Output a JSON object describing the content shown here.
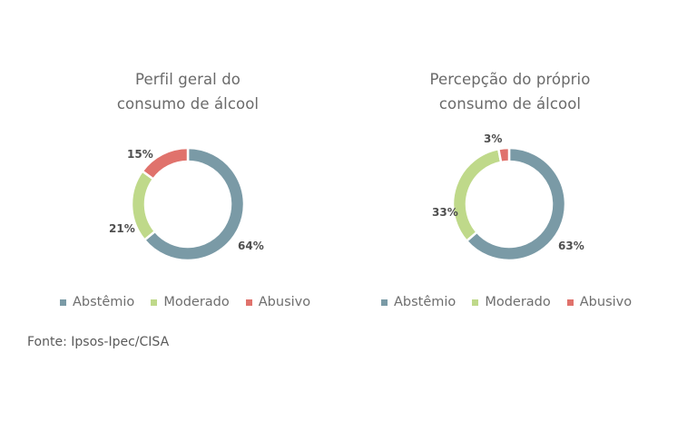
{
  "chart_data": [
    {
      "type": "pie",
      "style": "donut",
      "title": "Perfil geral do consumo de álcool",
      "categories": [
        "Abstêmio",
        "Moderado",
        "Abusivo"
      ],
      "values": [
        64,
        21,
        15
      ],
      "unit": "%",
      "colors": [
        "#7a9aa6",
        "#bfd98a",
        "#e0726c"
      ],
      "legend_position": "bottom"
    },
    {
      "type": "pie",
      "style": "donut",
      "title": "Percepção do próprio consumo de álcool",
      "categories": [
        "Abstêmio",
        "Moderado",
        "Abusivo"
      ],
      "values": [
        63,
        33,
        3
      ],
      "unit": "%",
      "colors": [
        "#7a9aa6",
        "#bfd98a",
        "#e0726c"
      ],
      "legend_position": "bottom"
    }
  ],
  "charts": [
    {
      "title_line1": "Perfil geral do",
      "title_line2": "consumo de álcool",
      "labels": [
        "64%",
        "21%",
        "15%"
      ],
      "legend": [
        "Abstêmio",
        "Moderado",
        "Abusivo"
      ]
    },
    {
      "title_line1": "Percepção do próprio",
      "title_line2": "consumo de álcool",
      "labels": [
        "63%",
        "33%",
        "3%"
      ],
      "legend": [
        "Abstêmio",
        "Moderado",
        "Abusivo"
      ]
    }
  ],
  "colors": {
    "abstemio": "#7a9aa6",
    "moderado": "#bfd98a",
    "abusivo": "#e0726c"
  },
  "source": "Fonte: Ipsos-Ipec/CISA"
}
